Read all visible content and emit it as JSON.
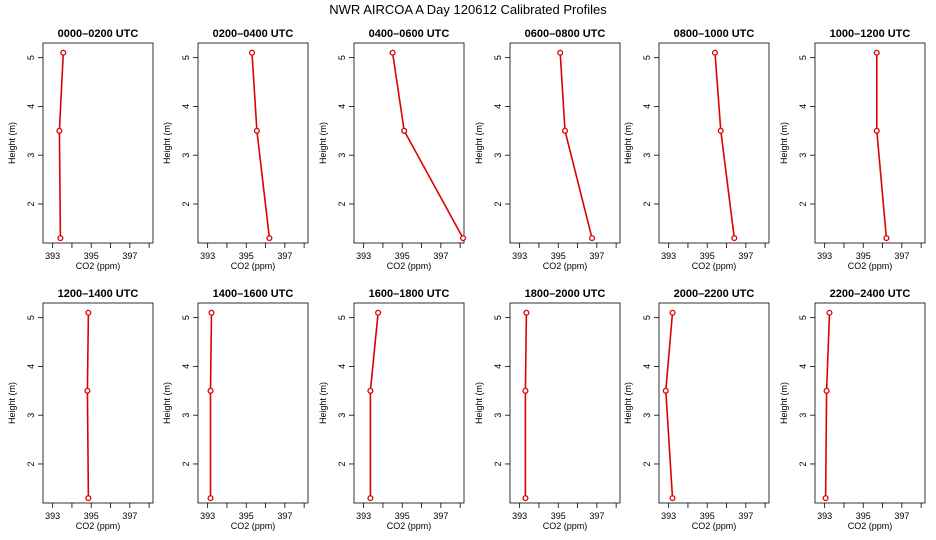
{
  "chart_data": {
    "title": "NWR AIRCOA A  Day 120612  Calibrated Profiles",
    "type": "line",
    "xlabel": "CO2 (ppm)",
    "ylabel": "Height (m)",
    "xlim": [
      392.5,
      398.2
    ],
    "ylim": [
      1.2,
      5.3
    ],
    "xticks": [
      "393",
      "395",
      "397"
    ],
    "xtick_values": [
      393,
      394,
      395,
      396,
      397,
      398
    ],
    "yticks": [
      2,
      3,
      4,
      5
    ],
    "line_color": "#dd0000",
    "panels": [
      {
        "title": "0000–0200 UTC",
        "heights": [
          5.1,
          3.5,
          1.3
        ],
        "co2": [
          393.55,
          393.35,
          393.4
        ]
      },
      {
        "title": "0200–0400 UTC",
        "heights": [
          5.1,
          3.5,
          1.3
        ],
        "co2": [
          395.3,
          395.55,
          396.2
        ]
      },
      {
        "title": "0400–0600 UTC",
        "heights": [
          5.1,
          3.5,
          1.3
        ],
        "co2": [
          394.5,
          395.1,
          398.15
        ]
      },
      {
        "title": "0600–0800 UTC",
        "heights": [
          5.1,
          3.5,
          1.3
        ],
        "co2": [
          395.1,
          395.35,
          396.75
        ]
      },
      {
        "title": "0800–1000 UTC",
        "heights": [
          5.1,
          3.5,
          1.3
        ],
        "co2": [
          395.4,
          395.7,
          396.4
        ]
      },
      {
        "title": "1000–1200 UTC",
        "heights": [
          5.1,
          3.5,
          1.3
        ],
        "co2": [
          395.7,
          395.7,
          396.2
        ]
      },
      {
        "title": "1200–1400 UTC",
        "heights": [
          5.1,
          3.5,
          1.3
        ],
        "co2": [
          394.85,
          394.8,
          394.85
        ]
      },
      {
        "title": "1400–1600 UTC",
        "heights": [
          5.1,
          3.5,
          1.3
        ],
        "co2": [
          393.2,
          393.15,
          393.15
        ]
      },
      {
        "title": "1600–1800 UTC",
        "heights": [
          5.1,
          3.5,
          1.3
        ],
        "co2": [
          393.75,
          393.35,
          393.35
        ]
      },
      {
        "title": "1800–2000 UTC",
        "heights": [
          5.1,
          3.5,
          1.3
        ],
        "co2": [
          393.35,
          393.3,
          393.3
        ]
      },
      {
        "title": "2000–2200 UTC",
        "heights": [
          5.1,
          3.5,
          1.3
        ],
        "co2": [
          393.2,
          392.85,
          393.2
        ]
      },
      {
        "title": "2200–2400 UTC",
        "heights": [
          5.1,
          3.5,
          1.3
        ],
        "co2": [
          393.25,
          393.1,
          393.05
        ]
      }
    ]
  }
}
